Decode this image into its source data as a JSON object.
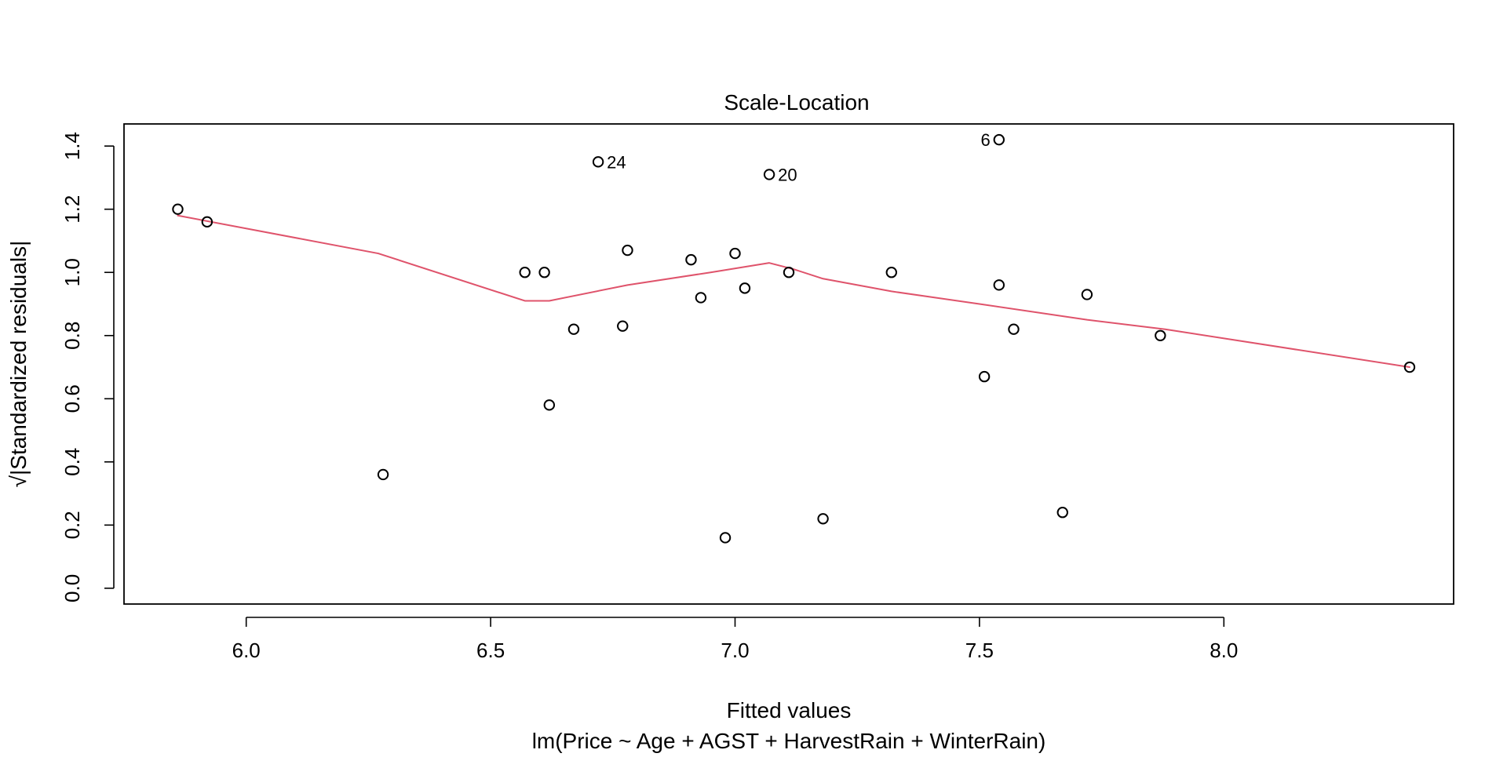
{
  "chart_data": {
    "type": "scatter",
    "title": "Scale-Location",
    "xlabel": "Fitted values",
    "ylabel": "√|Standardized residuals|",
    "subtitle": "lm(Price ~ Age + AGST + HarvestRain + WinterRain)",
    "xlim": [
      5.75,
      8.47
    ],
    "ylim": [
      -0.05,
      1.47
    ],
    "x_ticks": [
      6.0,
      6.5,
      7.0,
      7.5,
      8.0
    ],
    "x_tick_labels": [
      "6.0",
      "6.5",
      "7.0",
      "7.5",
      "8.0"
    ],
    "y_ticks": [
      0.0,
      0.2,
      0.4,
      0.6,
      0.8,
      1.0,
      1.2,
      1.4
    ],
    "y_tick_labels": [
      "0.0",
      "0.2",
      "0.4",
      "0.6",
      "0.8",
      "1.0",
      "1.2",
      "1.4"
    ],
    "grid": false,
    "points": [
      {
        "x": 5.86,
        "y": 1.2,
        "label": ""
      },
      {
        "x": 5.92,
        "y": 1.16,
        "label": ""
      },
      {
        "x": 6.28,
        "y": 0.36,
        "label": ""
      },
      {
        "x": 6.57,
        "y": 1.0,
        "label": ""
      },
      {
        "x": 6.61,
        "y": 1.0,
        "label": ""
      },
      {
        "x": 6.62,
        "y": 0.58,
        "label": ""
      },
      {
        "x": 6.67,
        "y": 0.82,
        "label": ""
      },
      {
        "x": 6.72,
        "y": 1.35,
        "label": "24"
      },
      {
        "x": 6.77,
        "y": 0.83,
        "label": ""
      },
      {
        "x": 6.78,
        "y": 1.07,
        "label": ""
      },
      {
        "x": 6.91,
        "y": 1.04,
        "label": ""
      },
      {
        "x": 6.93,
        "y": 0.92,
        "label": ""
      },
      {
        "x": 6.98,
        "y": 0.16,
        "label": ""
      },
      {
        "x": 7.0,
        "y": 1.06,
        "label": ""
      },
      {
        "x": 7.02,
        "y": 0.95,
        "label": ""
      },
      {
        "x": 7.07,
        "y": 1.31,
        "label": "20"
      },
      {
        "x": 7.11,
        "y": 1.0,
        "label": ""
      },
      {
        "x": 7.18,
        "y": 0.22,
        "label": ""
      },
      {
        "x": 7.32,
        "y": 1.0,
        "label": ""
      },
      {
        "x": 7.51,
        "y": 0.67,
        "label": ""
      },
      {
        "x": 7.54,
        "y": 1.42,
        "label": "6"
      },
      {
        "x": 7.54,
        "y": 0.96,
        "label": ""
      },
      {
        "x": 7.57,
        "y": 0.82,
        "label": ""
      },
      {
        "x": 7.67,
        "y": 0.24,
        "label": ""
      },
      {
        "x": 7.72,
        "y": 0.93,
        "label": ""
      },
      {
        "x": 7.87,
        "y": 0.8,
        "label": ""
      },
      {
        "x": 8.38,
        "y": 0.7,
        "label": ""
      }
    ],
    "smooth_line": {
      "name": "loess",
      "color": "#DF536B",
      "x": [
        5.86,
        6.27,
        6.57,
        6.62,
        6.78,
        6.95,
        7.07,
        7.12,
        7.18,
        7.32,
        7.5,
        7.72,
        7.88,
        8.38
      ],
      "y": [
        1.18,
        1.06,
        0.91,
        0.91,
        0.96,
        1.0,
        1.03,
        1.01,
        0.98,
        0.94,
        0.9,
        0.85,
        0.82,
        0.7
      ]
    },
    "point_color": "#000000"
  }
}
